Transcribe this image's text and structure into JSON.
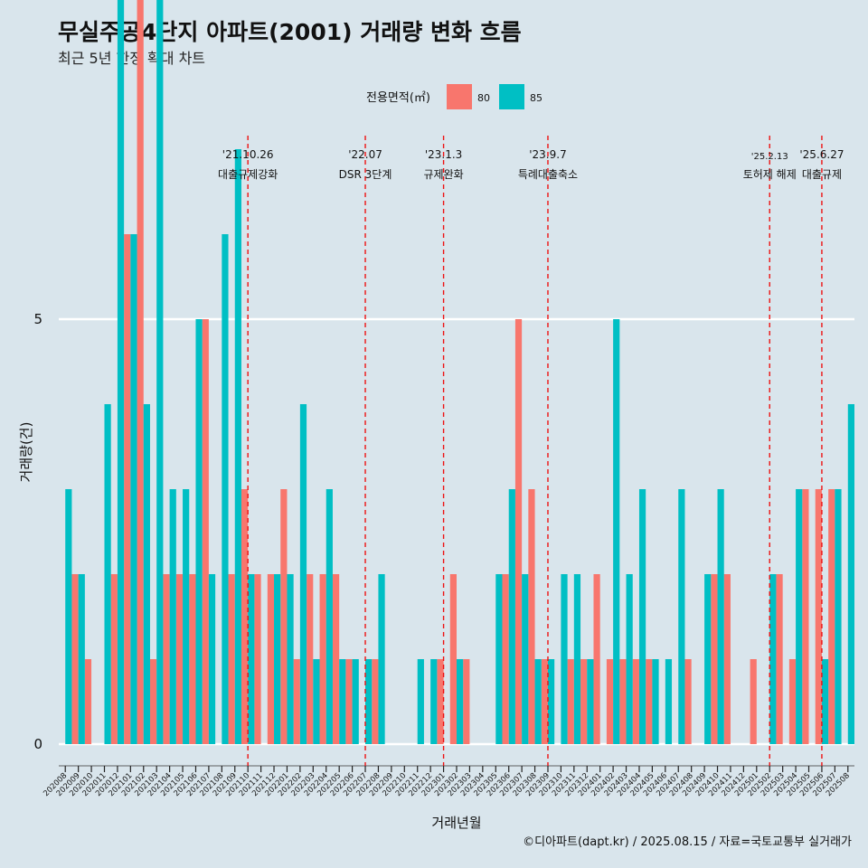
{
  "chart_data": {
    "type": "bar",
    "title": "무실주공4단지 아파트(2001) 거래량 변화 흐름",
    "subtitle": "최근 5년 한정 확대 차트",
    "xlabel": "거래년월",
    "ylabel": "거래량(건)",
    "ylim": [
      0,
      13
    ],
    "yticks": [
      0,
      5,
      10
    ],
    "grid": true,
    "legend": {
      "title": "전용면적(㎡)",
      "placement": "top",
      "items": [
        {
          "label": "80",
          "color": "#f8766d"
        },
        {
          "label": "85",
          "color": "#00bfc4"
        }
      ]
    },
    "categories": [
      "202008",
      "202009",
      "202010",
      "202011",
      "202012",
      "202101",
      "202102",
      "202103",
      "202104",
      "202105",
      "202106",
      "202107",
      "202108",
      "202109",
      "202110",
      "202111",
      "202112",
      "202201",
      "202202",
      "202203",
      "202204",
      "202205",
      "202206",
      "202207",
      "202208",
      "202209",
      "202210",
      "202211",
      "202212",
      "202301",
      "202302",
      "202303",
      "202304",
      "202305",
      "202306",
      "202307",
      "202308",
      "202309",
      "202310",
      "202311",
      "202312",
      "202401",
      "202402",
      "202403",
      "202404",
      "202405",
      "202406",
      "202407",
      "202408",
      "202409",
      "202410",
      "202411",
      "202412",
      "202501",
      "202502",
      "202503",
      "202504",
      "202505",
      "202506",
      "202507",
      "202508"
    ],
    "series": [
      {
        "name": "80",
        "color": "#f8766d",
        "values": [
          0,
          2,
          1,
          0,
          2,
          6,
          9,
          1,
          2,
          2,
          2,
          5,
          0,
          2,
          3,
          2,
          2,
          3,
          1,
          2,
          2,
          2,
          1,
          0,
          1,
          0,
          0,
          0,
          0,
          1,
          2,
          1,
          0,
          0,
          2,
          5,
          3,
          1,
          0,
          1,
          1,
          2,
          1,
          1,
          1,
          1,
          0,
          0,
          1,
          0,
          2,
          2,
          0,
          1,
          0,
          2,
          1,
          3,
          3,
          3,
          0
        ]
      },
      {
        "name": "85",
        "color": "#00bfc4",
        "values": [
          3,
          2,
          0,
          4,
          13,
          6,
          4,
          10,
          3,
          3,
          5,
          2,
          6,
          7,
          2,
          0,
          2,
          2,
          4,
          1,
          3,
          1,
          1,
          1,
          2,
          0,
          0,
          1,
          1,
          0,
          1,
          0,
          0,
          2,
          3,
          2,
          1,
          1,
          2,
          2,
          1,
          0,
          5,
          2,
          3,
          1,
          1,
          3,
          0,
          2,
          3,
          0,
          0,
          0,
          2,
          0,
          3,
          0,
          1,
          3,
          4
        ]
      }
    ],
    "annotations": [
      {
        "date": "'21.10.26",
        "label": "대출규제강화",
        "at": "202110"
      },
      {
        "date": "'22.07",
        "label": "DSR 3단계",
        "at": "202207"
      },
      {
        "date": "'23.1.3",
        "label": "규제완화",
        "at": "202301"
      },
      {
        "date": "'23.9.7",
        "label": "특례대출축소",
        "at": "202309"
      },
      {
        "date": "'25.2.13",
        "label": "토허제 해제",
        "at": "202502"
      },
      {
        "date": "'25.6.27",
        "label": "대출규제",
        "at": "202506"
      }
    ],
    "caption": "©디아파트(dapt.kr) / 2025.08.15 / 자료=국토교통부 실거래가"
  }
}
